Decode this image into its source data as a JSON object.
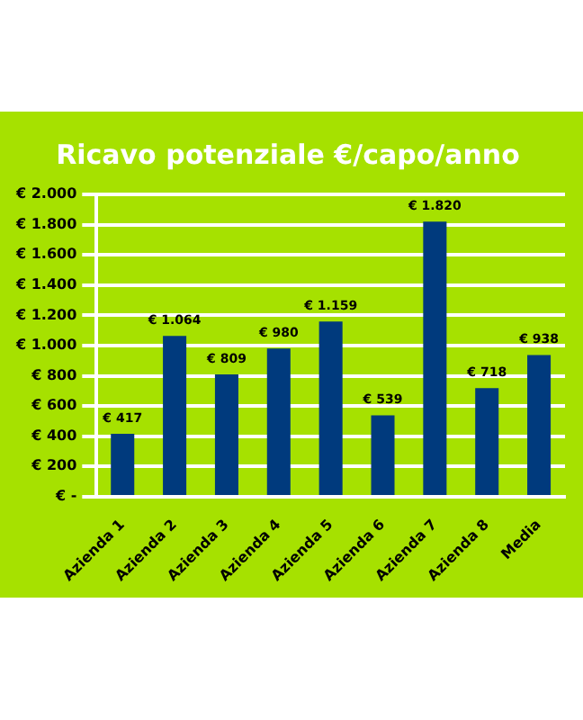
{
  "chart_data": {
    "type": "bar",
    "title": "Ricavo potenziale €/capo/anno",
    "categories": [
      "Azienda 1",
      "Azienda 2",
      "Azienda 3",
      "Azienda 4",
      "Azienda 5",
      "Azienda 6",
      "Azienda 7",
      "Azienda 8",
      "Media"
    ],
    "values": [
      417,
      1064,
      809,
      980,
      1159,
      539,
      1820,
      718,
      938
    ],
    "value_labels": [
      "€ 417",
      "€ 1.064",
      "€ 809",
      "€ 980",
      "€ 1.159",
      "€ 539",
      "€ 1.820",
      "€ 718",
      "€ 938"
    ],
    "color": "#003a7d",
    "ylim": [
      0,
      2000
    ],
    "yticks": [
      {
        "value": 0,
        "label": "€ -"
      },
      {
        "value": 200,
        "label": "€ 200"
      },
      {
        "value": 400,
        "label": "€ 400"
      },
      {
        "value": 600,
        "label": "€ 600"
      },
      {
        "value": 800,
        "label": "€ 800"
      },
      {
        "value": 1000,
        "label": "€ 1.000"
      },
      {
        "value": 1200,
        "label": "€ 1.200"
      },
      {
        "value": 1400,
        "label": "€ 1.400"
      },
      {
        "value": 1600,
        "label": "€ 1.600"
      },
      {
        "value": 1800,
        "label": "€ 1.800"
      },
      {
        "value": 2000,
        "label": "€ 2.000"
      }
    ],
    "grid": "y"
  }
}
